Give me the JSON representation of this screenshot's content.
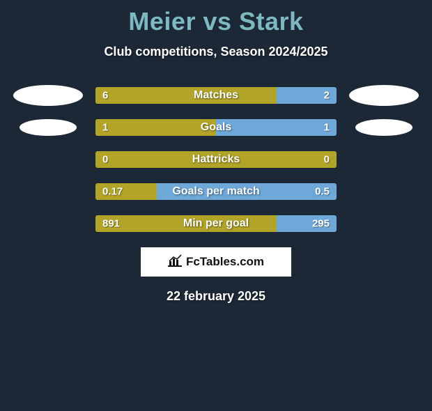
{
  "title_color": "#7eb9c1",
  "player1": "Meier",
  "player2": "Stark",
  "subtitle": "Club competitions, Season 2024/2025",
  "colors": {
    "left_bar": "#b2a429",
    "right_bar": "#6fa8d8",
    "background": "#1c2836",
    "dot": "#ffffff"
  },
  "rows": [
    {
      "label": "Matches",
      "left": "6",
      "right": "2",
      "left_pct": 75,
      "right_pct": 25,
      "show_dots": true,
      "dot_scale": 1.0
    },
    {
      "label": "Goals",
      "left": "1",
      "right": "1",
      "left_pct": 50,
      "right_pct": 50,
      "show_dots": true,
      "dot_scale": 0.82
    },
    {
      "label": "Hattricks",
      "left": "0",
      "right": "0",
      "left_pct": 100,
      "right_pct": 0,
      "show_dots": false,
      "dot_scale": 1.0
    },
    {
      "label": "Goals per match",
      "left": "0.17",
      "right": "0.5",
      "left_pct": 25.4,
      "right_pct": 74.6,
      "show_dots": false,
      "dot_scale": 1.0
    },
    {
      "label": "Min per goal",
      "left": "891",
      "right": "295",
      "left_pct": 75.1,
      "right_pct": 24.9,
      "show_dots": false,
      "dot_scale": 1.0
    }
  ],
  "brand": "FcTables.com",
  "date": "22 february 2025"
}
